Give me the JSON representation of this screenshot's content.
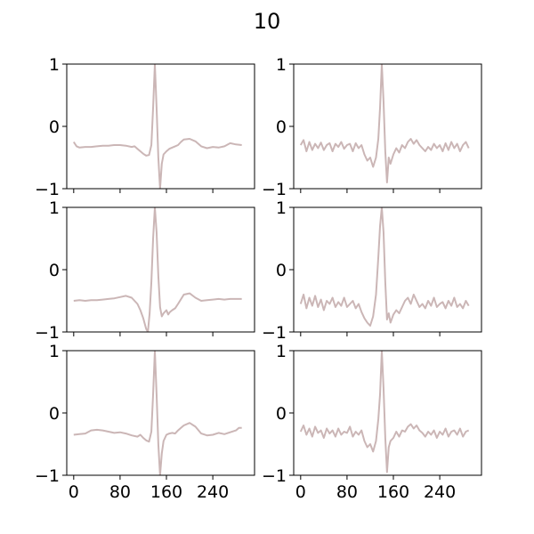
{
  "figure": {
    "title": "10"
  },
  "chart_data": {
    "type": "line",
    "suptitle": "10",
    "layout": {
      "rows": 3,
      "cols": 2,
      "sharex": true
    },
    "line_color": "#cbb6b6",
    "xlim": [
      -12,
      312
    ],
    "ylim": [
      -1,
      1
    ],
    "xticks": [
      0,
      80,
      160,
      240
    ],
    "xtick_labels": [
      "0",
      "80",
      "160",
      "240"
    ],
    "yticks": [
      -1,
      0,
      1
    ],
    "ytick_labels": [
      "−1",
      "0",
      "1"
    ],
    "panels": [
      {
        "row": 0,
        "col": 0,
        "points": [
          [
            0,
            -0.25
          ],
          [
            5,
            -0.32
          ],
          [
            10,
            -0.34
          ],
          [
            20,
            -0.33
          ],
          [
            30,
            -0.33
          ],
          [
            40,
            -0.32
          ],
          [
            50,
            -0.31
          ],
          [
            60,
            -0.31
          ],
          [
            70,
            -0.3
          ],
          [
            80,
            -0.3
          ],
          [
            90,
            -0.31
          ],
          [
            100,
            -0.33
          ],
          [
            105,
            -0.32
          ],
          [
            110,
            -0.36
          ],
          [
            115,
            -0.4
          ],
          [
            120,
            -0.44
          ],
          [
            125,
            -0.47
          ],
          [
            130,
            -0.46
          ],
          [
            134,
            -0.3
          ],
          [
            137,
            0.3
          ],
          [
            140,
            1.0
          ],
          [
            143,
            0.3
          ],
          [
            146,
            -0.5
          ],
          [
            149,
            -1.0
          ],
          [
            152,
            -0.6
          ],
          [
            155,
            -0.45
          ],
          [
            160,
            -0.4
          ],
          [
            165,
            -0.36
          ],
          [
            170,
            -0.34
          ],
          [
            175,
            -0.32
          ],
          [
            180,
            -0.3
          ],
          [
            185,
            -0.25
          ],
          [
            190,
            -0.21
          ],
          [
            200,
            -0.2
          ],
          [
            210,
            -0.24
          ],
          [
            220,
            -0.32
          ],
          [
            230,
            -0.35
          ],
          [
            240,
            -0.33
          ],
          [
            250,
            -0.34
          ],
          [
            260,
            -0.32
          ],
          [
            270,
            -0.27
          ],
          [
            280,
            -0.29
          ],
          [
            290,
            -0.3
          ]
        ]
      },
      {
        "row": 0,
        "col": 1,
        "points": [
          [
            0,
            -0.3
          ],
          [
            5,
            -0.22
          ],
          [
            10,
            -0.4
          ],
          [
            15,
            -0.25
          ],
          [
            20,
            -0.38
          ],
          [
            25,
            -0.28
          ],
          [
            30,
            -0.35
          ],
          [
            35,
            -0.26
          ],
          [
            40,
            -0.38
          ],
          [
            45,
            -0.3
          ],
          [
            50,
            -0.27
          ],
          [
            55,
            -0.4
          ],
          [
            60,
            -0.28
          ],
          [
            65,
            -0.33
          ],
          [
            70,
            -0.25
          ],
          [
            75,
            -0.36
          ],
          [
            80,
            -0.3
          ],
          [
            85,
            -0.28
          ],
          [
            90,
            -0.4
          ],
          [
            95,
            -0.27
          ],
          [
            100,
            -0.35
          ],
          [
            105,
            -0.3
          ],
          [
            110,
            -0.45
          ],
          [
            115,
            -0.55
          ],
          [
            120,
            -0.5
          ],
          [
            125,
            -0.65
          ],
          [
            130,
            -0.5
          ],
          [
            134,
            -0.2
          ],
          [
            137,
            0.3
          ],
          [
            140,
            1.0
          ],
          [
            143,
            0.4
          ],
          [
            146,
            -0.4
          ],
          [
            149,
            -0.9
          ],
          [
            152,
            -0.5
          ],
          [
            155,
            -0.6
          ],
          [
            160,
            -0.45
          ],
          [
            165,
            -0.35
          ],
          [
            170,
            -0.42
          ],
          [
            175,
            -0.3
          ],
          [
            180,
            -0.35
          ],
          [
            185,
            -0.25
          ],
          [
            190,
            -0.2
          ],
          [
            195,
            -0.28
          ],
          [
            200,
            -0.22
          ],
          [
            205,
            -0.3
          ],
          [
            210,
            -0.35
          ],
          [
            215,
            -0.4
          ],
          [
            220,
            -0.33
          ],
          [
            225,
            -0.38
          ],
          [
            230,
            -0.28
          ],
          [
            235,
            -0.35
          ],
          [
            240,
            -0.3
          ],
          [
            245,
            -0.4
          ],
          [
            250,
            -0.27
          ],
          [
            255,
            -0.38
          ],
          [
            260,
            -0.25
          ],
          [
            265,
            -0.35
          ],
          [
            270,
            -0.28
          ],
          [
            275,
            -0.4
          ],
          [
            280,
            -0.3
          ],
          [
            285,
            -0.25
          ],
          [
            290,
            -0.35
          ]
        ]
      },
      {
        "row": 1,
        "col": 0,
        "points": [
          [
            0,
            -0.5
          ],
          [
            10,
            -0.49
          ],
          [
            20,
            -0.5
          ],
          [
            30,
            -0.49
          ],
          [
            40,
            -0.49
          ],
          [
            50,
            -0.48
          ],
          [
            60,
            -0.47
          ],
          [
            70,
            -0.46
          ],
          [
            80,
            -0.44
          ],
          [
            90,
            -0.42
          ],
          [
            100,
            -0.45
          ],
          [
            110,
            -0.55
          ],
          [
            115,
            -0.65
          ],
          [
            120,
            -0.78
          ],
          [
            125,
            -0.95
          ],
          [
            128,
            -1.0
          ],
          [
            131,
            -0.7
          ],
          [
            134,
            -0.2
          ],
          [
            137,
            0.5
          ],
          [
            140,
            1.0
          ],
          [
            143,
            0.6
          ],
          [
            146,
            -0.1
          ],
          [
            149,
            -0.6
          ],
          [
            152,
            -0.75
          ],
          [
            155,
            -0.7
          ],
          [
            160,
            -0.65
          ],
          [
            163,
            -0.72
          ],
          [
            166,
            -0.68
          ],
          [
            170,
            -0.65
          ],
          [
            175,
            -0.62
          ],
          [
            180,
            -0.55
          ],
          [
            190,
            -0.4
          ],
          [
            200,
            -0.38
          ],
          [
            210,
            -0.45
          ],
          [
            220,
            -0.5
          ],
          [
            230,
            -0.49
          ],
          [
            240,
            -0.48
          ],
          [
            250,
            -0.47
          ],
          [
            260,
            -0.48
          ],
          [
            270,
            -0.47
          ],
          [
            280,
            -0.47
          ],
          [
            290,
            -0.47
          ]
        ]
      },
      {
        "row": 1,
        "col": 1,
        "points": [
          [
            0,
            -0.55
          ],
          [
            5,
            -0.4
          ],
          [
            10,
            -0.62
          ],
          [
            15,
            -0.45
          ],
          [
            20,
            -0.58
          ],
          [
            25,
            -0.42
          ],
          [
            30,
            -0.6
          ],
          [
            35,
            -0.48
          ],
          [
            40,
            -0.65
          ],
          [
            45,
            -0.5
          ],
          [
            50,
            -0.55
          ],
          [
            55,
            -0.45
          ],
          [
            60,
            -0.6
          ],
          [
            65,
            -0.52
          ],
          [
            70,
            -0.58
          ],
          [
            75,
            -0.45
          ],
          [
            80,
            -0.6
          ],
          [
            85,
            -0.55
          ],
          [
            90,
            -0.5
          ],
          [
            95,
            -0.62
          ],
          [
            100,
            -0.55
          ],
          [
            105,
            -0.68
          ],
          [
            110,
            -0.78
          ],
          [
            115,
            -0.85
          ],
          [
            120,
            -0.9
          ],
          [
            125,
            -0.75
          ],
          [
            130,
            -0.4
          ],
          [
            134,
            0.2
          ],
          [
            137,
            0.7
          ],
          [
            140,
            1.0
          ],
          [
            143,
            0.6
          ],
          [
            146,
            -0.2
          ],
          [
            149,
            -0.8
          ],
          [
            152,
            -0.7
          ],
          [
            155,
            -0.85
          ],
          [
            160,
            -0.72
          ],
          [
            165,
            -0.65
          ],
          [
            170,
            -0.7
          ],
          [
            175,
            -0.6
          ],
          [
            180,
            -0.5
          ],
          [
            185,
            -0.45
          ],
          [
            190,
            -0.55
          ],
          [
            195,
            -0.4
          ],
          [
            200,
            -0.5
          ],
          [
            205,
            -0.6
          ],
          [
            210,
            -0.55
          ],
          [
            215,
            -0.62
          ],
          [
            220,
            -0.5
          ],
          [
            225,
            -0.58
          ],
          [
            230,
            -0.45
          ],
          [
            235,
            -0.6
          ],
          [
            240,
            -0.55
          ],
          [
            245,
            -0.52
          ],
          [
            250,
            -0.62
          ],
          [
            255,
            -0.5
          ],
          [
            260,
            -0.58
          ],
          [
            265,
            -0.45
          ],
          [
            270,
            -0.6
          ],
          [
            275,
            -0.55
          ],
          [
            280,
            -0.62
          ],
          [
            285,
            -0.5
          ],
          [
            290,
            -0.58
          ]
        ]
      },
      {
        "row": 2,
        "col": 0,
        "points": [
          [
            0,
            -0.35
          ],
          [
            10,
            -0.34
          ],
          [
            20,
            -0.33
          ],
          [
            30,
            -0.28
          ],
          [
            40,
            -0.27
          ],
          [
            50,
            -0.28
          ],
          [
            60,
            -0.3
          ],
          [
            70,
            -0.32
          ],
          [
            80,
            -0.31
          ],
          [
            90,
            -0.33
          ],
          [
            100,
            -0.36
          ],
          [
            110,
            -0.38
          ],
          [
            115,
            -0.35
          ],
          [
            120,
            -0.4
          ],
          [
            125,
            -0.44
          ],
          [
            130,
            -0.46
          ],
          [
            134,
            -0.3
          ],
          [
            137,
            0.3
          ],
          [
            140,
            1.0
          ],
          [
            143,
            0.3
          ],
          [
            146,
            -0.5
          ],
          [
            149,
            -1.0
          ],
          [
            152,
            -0.65
          ],
          [
            155,
            -0.45
          ],
          [
            160,
            -0.35
          ],
          [
            165,
            -0.33
          ],
          [
            170,
            -0.32
          ],
          [
            175,
            -0.33
          ],
          [
            180,
            -0.28
          ],
          [
            185,
            -0.24
          ],
          [
            190,
            -0.2
          ],
          [
            200,
            -0.16
          ],
          [
            210,
            -0.22
          ],
          [
            220,
            -0.33
          ],
          [
            230,
            -0.36
          ],
          [
            240,
            -0.35
          ],
          [
            250,
            -0.32
          ],
          [
            260,
            -0.34
          ],
          [
            270,
            -0.31
          ],
          [
            280,
            -0.28
          ],
          [
            285,
            -0.24
          ],
          [
            290,
            -0.24
          ]
        ]
      },
      {
        "row": 2,
        "col": 1,
        "points": [
          [
            0,
            -0.3
          ],
          [
            5,
            -0.2
          ],
          [
            10,
            -0.35
          ],
          [
            15,
            -0.25
          ],
          [
            20,
            -0.38
          ],
          [
            25,
            -0.22
          ],
          [
            30,
            -0.32
          ],
          [
            35,
            -0.28
          ],
          [
            40,
            -0.4
          ],
          [
            45,
            -0.25
          ],
          [
            50,
            -0.33
          ],
          [
            55,
            -0.28
          ],
          [
            60,
            -0.38
          ],
          [
            65,
            -0.25
          ],
          [
            70,
            -0.35
          ],
          [
            75,
            -0.3
          ],
          [
            80,
            -0.32
          ],
          [
            85,
            -0.22
          ],
          [
            90,
            -0.38
          ],
          [
            95,
            -0.3
          ],
          [
            100,
            -0.35
          ],
          [
            105,
            -0.28
          ],
          [
            110,
            -0.45
          ],
          [
            115,
            -0.55
          ],
          [
            120,
            -0.5
          ],
          [
            125,
            -0.62
          ],
          [
            130,
            -0.45
          ],
          [
            134,
            -0.1
          ],
          [
            137,
            0.3
          ],
          [
            140,
            1.0
          ],
          [
            143,
            0.4
          ],
          [
            146,
            -0.4
          ],
          [
            149,
            -0.95
          ],
          [
            152,
            -0.55
          ],
          [
            155,
            -0.45
          ],
          [
            160,
            -0.4
          ],
          [
            165,
            -0.3
          ],
          [
            170,
            -0.38
          ],
          [
            175,
            -0.28
          ],
          [
            180,
            -0.3
          ],
          [
            185,
            -0.22
          ],
          [
            190,
            -0.18
          ],
          [
            195,
            -0.25
          ],
          [
            200,
            -0.2
          ],
          [
            205,
            -0.28
          ],
          [
            210,
            -0.32
          ],
          [
            215,
            -0.38
          ],
          [
            220,
            -0.3
          ],
          [
            225,
            -0.35
          ],
          [
            230,
            -0.28
          ],
          [
            235,
            -0.4
          ],
          [
            240,
            -0.3
          ],
          [
            245,
            -0.35
          ],
          [
            250,
            -0.25
          ],
          [
            255,
            -0.38
          ],
          [
            260,
            -0.3
          ],
          [
            265,
            -0.28
          ],
          [
            270,
            -0.35
          ],
          [
            275,
            -0.25
          ],
          [
            280,
            -0.38
          ],
          [
            285,
            -0.3
          ],
          [
            290,
            -0.28
          ]
        ]
      }
    ]
  }
}
